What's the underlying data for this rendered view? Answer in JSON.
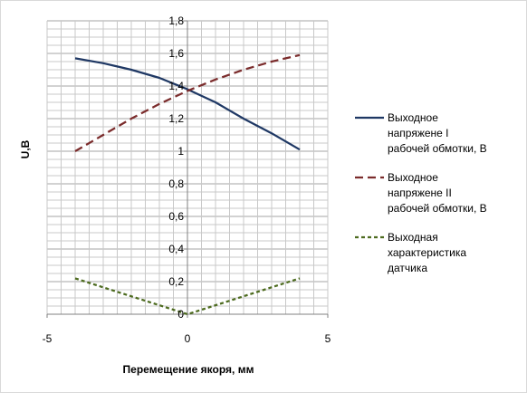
{
  "chart_data": {
    "type": "line",
    "xlabel": "Перемещение якоря, мм",
    "ylabel": "U,В",
    "xlim": [
      -5,
      5
    ],
    "ylim": [
      0,
      1.8
    ],
    "x_ticks": [
      {
        "value": -5,
        "label": "-5"
      },
      {
        "value": 0,
        "label": "0"
      },
      {
        "value": 5,
        "label": "5"
      }
    ],
    "y_ticks": [
      {
        "value": 0,
        "label": "0"
      },
      {
        "value": 0.2,
        "label": "0,2"
      },
      {
        "value": 0.4,
        "label": "0,4"
      },
      {
        "value": 0.6,
        "label": "0,6"
      },
      {
        "value": 0.8,
        "label": "0,8"
      },
      {
        "value": 1,
        "label": "1"
      },
      {
        "value": 1.2,
        "label": "1,2"
      },
      {
        "value": 1.4,
        "label": "1,4"
      },
      {
        "value": 1.6,
        "label": "1,6"
      },
      {
        "value": 1.8,
        "label": "1,8"
      }
    ],
    "grid": true,
    "legend_position": "right",
    "series": [
      {
        "name": "Выходное напряжене I рабочей обмотки, В",
        "legend_lines": [
          "Выходное",
          "напряжене I",
          "рабочей обмотки, В"
        ],
        "color": "#1f3864",
        "dash": "solid",
        "x": [
          -4,
          -3,
          -2,
          -1,
          0,
          1,
          2,
          3,
          4
        ],
        "y": [
          1.57,
          1.54,
          1.5,
          1.45,
          1.38,
          1.3,
          1.2,
          1.11,
          1.01
        ]
      },
      {
        "name": "Выходное напряжене II рабочей обмотки, В",
        "legend_lines": [
          "Выходное",
          "напряжене II",
          "рабочей обмотки, В"
        ],
        "color": "#7b2c2c",
        "dash": "long",
        "x": [
          -4,
          -3,
          -2,
          -1,
          0,
          1,
          2,
          3,
          4
        ],
        "y": [
          1.0,
          1.1,
          1.2,
          1.29,
          1.37,
          1.44,
          1.5,
          1.55,
          1.59
        ]
      },
      {
        "name": "Выходная характеристика датчика",
        "legend_lines": [
          "Выходная",
          "характеристика",
          "датчика"
        ],
        "color": "#4d6b1f",
        "dash": "short",
        "x": [
          -4,
          -2,
          0,
          2,
          4
        ],
        "y": [
          0.22,
          0.11,
          0.0,
          0.11,
          0.22
        ]
      }
    ]
  }
}
